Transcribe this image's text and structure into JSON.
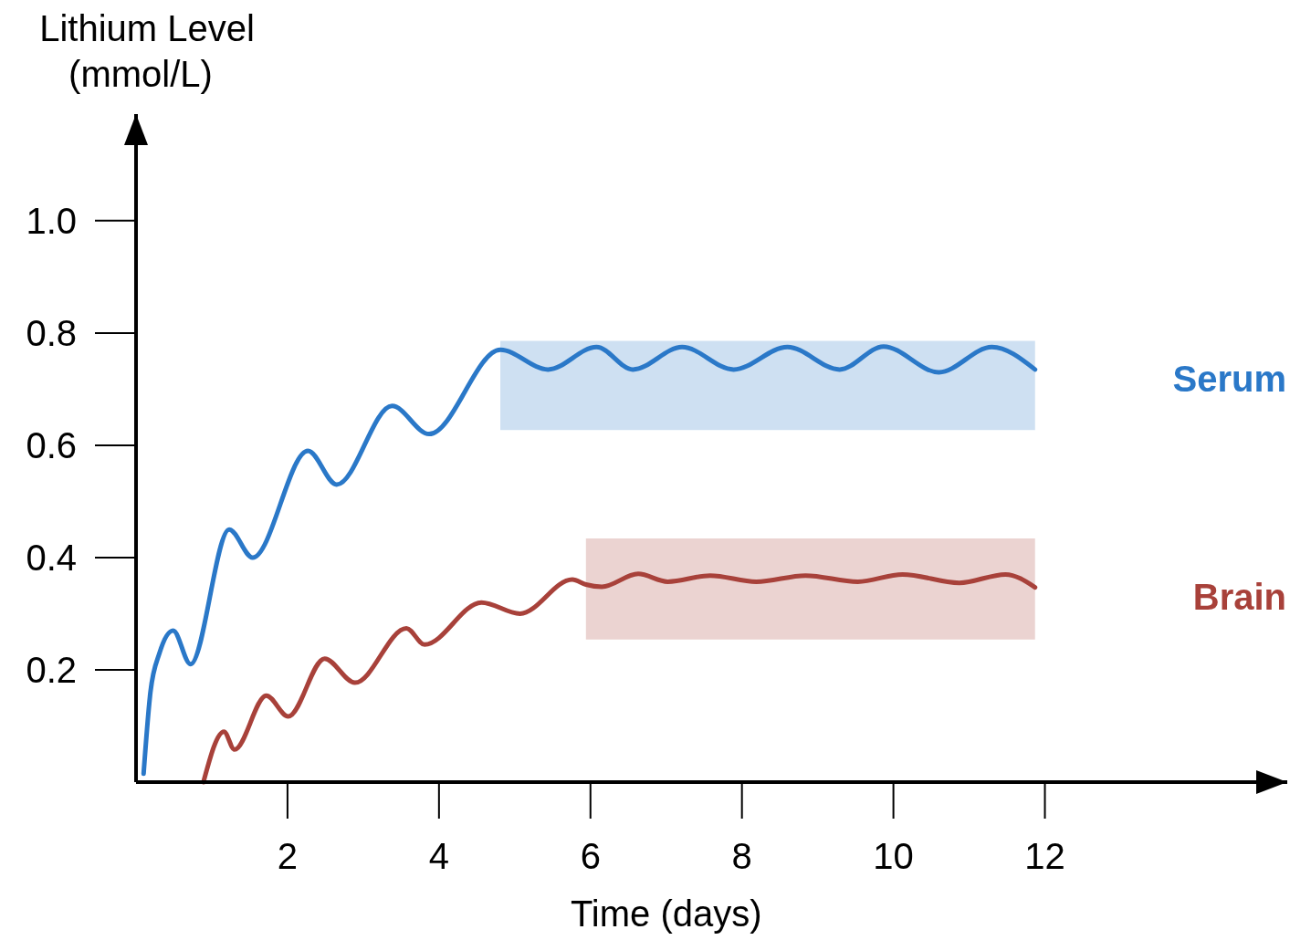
{
  "chart_data": {
    "type": "line",
    "xlabel": "Time (days)",
    "ylabel": "Lithium Level (mmol/L)",
    "xlim": [
      0,
      15.2
    ],
    "ylim": [
      0,
      1.19
    ],
    "xticks": [
      2,
      4,
      6,
      8,
      10,
      12
    ],
    "yticks": [
      0.2,
      0.4,
      0.6,
      0.8,
      {
        "value": 1,
        "label": "1.0"
      }
    ],
    "grid": false,
    "legend": false,
    "marker": "none",
    "line_style": "solid",
    "series": [
      {
        "name": "Serum",
        "color": "#2a78c8",
        "x": [
          0.1,
          0.19,
          0.31,
          0.49,
          0.72,
          1.23,
          1.54,
          2.27,
          2.65,
          3.38,
          3.87,
          4.81,
          5.44,
          6.08,
          6.56,
          7.21,
          7.89,
          8.6,
          9.29,
          9.87,
          10.6,
          11.3,
          11.87
        ],
        "values": [
          0.015,
          0.16,
          0.23,
          0.27,
          0.21,
          0.45,
          0.4,
          0.59,
          0.53,
          0.67,
          0.62,
          0.77,
          0.735,
          0.775,
          0.735,
          0.775,
          0.735,
          0.775,
          0.735,
          0.776,
          0.73,
          0.775,
          0.735
        ],
        "lower": [
          null,
          null,
          null,
          null,
          null,
          null,
          null,
          null,
          null,
          null,
          null,
          0.627,
          0.627,
          0.627,
          0.627,
          0.627,
          0.627,
          0.627,
          0.627,
          0.627,
          0.627,
          0.627,
          0.627
        ],
        "upper": [
          null,
          null,
          null,
          null,
          null,
          null,
          null,
          null,
          null,
          null,
          null,
          0.786,
          0.786,
          0.786,
          0.786,
          0.786,
          0.786,
          0.786,
          0.786,
          0.786,
          0.786,
          0.786,
          0.786
        ]
      },
      {
        "name": "Brain",
        "color": "#a8413a",
        "x": [
          0.89,
          1.16,
          1.3,
          1.72,
          2.01,
          2.49,
          2.89,
          3.57,
          3.81,
          4.56,
          5.07,
          5.76,
          5.94,
          6.15,
          6.63,
          7.02,
          7.58,
          8.19,
          8.84,
          9.53,
          10.12,
          10.87,
          11.48,
          11.87
        ],
        "values": [
          0,
          0.09,
          0.058,
          0.154,
          0.117,
          0.22,
          0.177,
          0.274,
          0.245,
          0.32,
          0.3,
          0.361,
          0.352,
          0.348,
          0.371,
          0.357,
          0.368,
          0.357,
          0.368,
          0.357,
          0.37,
          0.355,
          0.37,
          0.347
        ],
        "lower": [
          null,
          null,
          null,
          null,
          null,
          null,
          null,
          null,
          null,
          null,
          null,
          null,
          0.254,
          0.254,
          0.254,
          0.254,
          0.254,
          0.254,
          0.254,
          0.254,
          0.254,
          0.254,
          0.254,
          0.254
        ],
        "upper": [
          null,
          null,
          null,
          null,
          null,
          null,
          null,
          null,
          null,
          null,
          null,
          null,
          0.434,
          0.434,
          0.434,
          0.434,
          0.434,
          0.434,
          0.434,
          0.434,
          0.434,
          0.434,
          0.434,
          0.434
        ]
      }
    ]
  }
}
